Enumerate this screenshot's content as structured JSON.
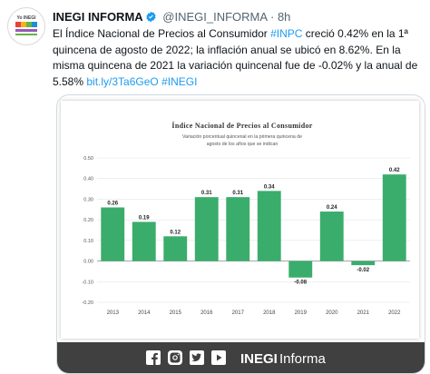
{
  "tweet": {
    "author_name": "INEGI INFORMA",
    "handle": "@INEGI_INFORMA",
    "separator": "·",
    "time": "8h",
    "text_part1": "El Índice Nacional de Precios al Consumidor ",
    "hashtag_inpc": "#INPC",
    "text_part2": " creció 0.42% en la 1ª quincena de agosto de 2022; la inflación anual se ubicó en 8.62%. En la misma quincena de 2021 la variación quincenal fue de -0.02% y la anual de 5.58% ",
    "link": "bit.ly/3Ta6GeO",
    "hashtag_inegi": "#INEGI"
  },
  "avatar": {
    "text_top": "Yo INEGI",
    "colors": [
      "#e7423a",
      "#f6b21a",
      "#67b346",
      "#1f8fd3"
    ]
  },
  "footer": {
    "brand_bold": "INEGI",
    "brand_light": "Informa",
    "icons": [
      "facebook-icon",
      "instagram-icon",
      "twitter-icon",
      "youtube-icon"
    ]
  },
  "chart_data": {
    "type": "bar",
    "title": "Índice Nacional de Precios al Consumidor",
    "subtitle_line1": "Variación porcentual quincenal en la primera quincena de",
    "subtitle_line2": "agosto de los años que se indican",
    "categories": [
      "2013",
      "2014",
      "2015",
      "2016",
      "2017",
      "2018",
      "2019",
      "2020",
      "2021",
      "2022"
    ],
    "values": [
      0.26,
      0.19,
      0.12,
      0.31,
      0.31,
      0.34,
      -0.08,
      0.24,
      -0.02,
      0.42
    ],
    "value_labels": [
      "0.26",
      "0.19",
      "0.12",
      "0.31",
      "0.31",
      "0.34",
      "-0.08",
      "0.24",
      "-0.02",
      "0.42"
    ],
    "ylim": [
      -0.2,
      0.5
    ],
    "yticks": [
      "-0.20",
      "-0.10",
      "0.00",
      "0.10",
      "0.20",
      "0.30",
      "0.40",
      "0.50"
    ],
    "bar_color": "#3aad6c",
    "grid": true
  }
}
